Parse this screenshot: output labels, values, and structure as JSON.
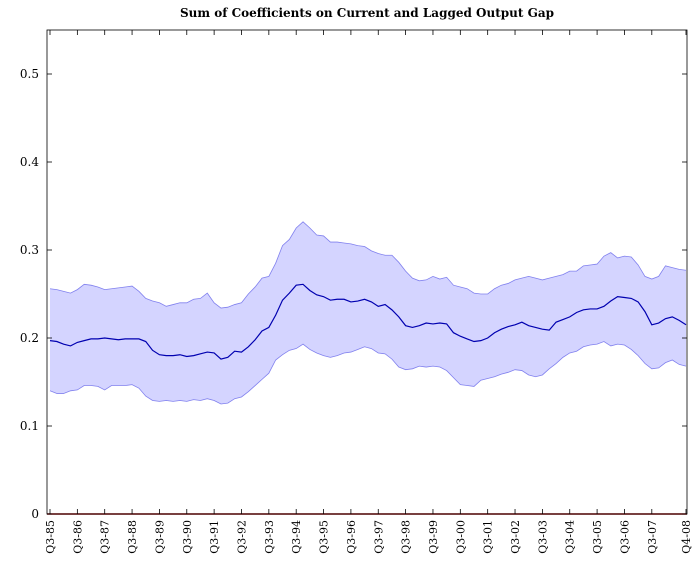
{
  "chart_data": {
    "type": "line",
    "title": "Sum of Coefficients on Current and Lagged Output Gap",
    "categories": [
      "Q3-85",
      null,
      null,
      null,
      "Q3-86",
      null,
      null,
      null,
      "Q3-87",
      null,
      null,
      null,
      "Q3-88",
      null,
      null,
      null,
      "Q3-89",
      null,
      null,
      null,
      "Q3-90",
      null,
      null,
      null,
      "Q3-91",
      null,
      null,
      null,
      "Q3-92",
      null,
      null,
      null,
      "Q3-93",
      null,
      null,
      null,
      "Q3-94",
      null,
      null,
      null,
      "Q3-95",
      null,
      null,
      null,
      "Q3-96",
      null,
      null,
      null,
      "Q3-97",
      null,
      null,
      null,
      "Q3-98",
      null,
      null,
      null,
      "Q3-99",
      null,
      null,
      null,
      "Q3-00",
      null,
      null,
      null,
      "Q3-01",
      null,
      null,
      null,
      "Q3-02",
      null,
      null,
      null,
      "Q3-03",
      null,
      null,
      null,
      "Q3-04",
      null,
      null,
      null,
      "Q3-05",
      null,
      null,
      null,
      "Q3-06",
      null,
      null,
      null,
      "Q3-07",
      null,
      null,
      null,
      null,
      "Q4-08"
    ],
    "values": [
      0.197,
      0.196,
      0.193,
      0.191,
      0.195,
      0.197,
      0.199,
      0.199,
      0.2,
      0.199,
      0.198,
      0.199,
      0.199,
      0.199,
      0.196,
      0.186,
      0.181,
      0.18,
      0.18,
      0.181,
      0.179,
      0.18,
      0.182,
      0.184,
      0.183,
      0.176,
      0.178,
      0.185,
      0.184,
      0.19,
      0.198,
      0.208,
      0.212,
      0.226,
      0.243,
      0.251,
      0.26,
      0.261,
      0.254,
      0.249,
      0.247,
      0.243,
      0.244,
      0.244,
      0.241,
      0.242,
      0.244,
      0.241,
      0.236,
      0.238,
      0.232,
      0.224,
      0.214,
      0.212,
      0.214,
      0.217,
      0.216,
      0.217,
      0.216,
      0.206,
      0.202,
      0.199,
      0.196,
      0.197,
      0.2,
      0.206,
      0.21,
      0.213,
      0.215,
      0.218,
      0.214,
      0.212,
      0.21,
      0.209,
      0.218,
      0.221,
      0.224,
      0.229,
      0.232,
      0.233,
      0.233,
      0.236,
      0.242,
      0.247,
      0.246,
      0.245,
      0.241,
      0.23,
      0.215,
      0.217,
      0.222,
      0.224,
      0.22,
      0.215
    ],
    "color": "#0000b0",
    "band": {
      "color": "#d4d4ff",
      "edge_color": "#8080ee",
      "upper": [
        0.256,
        0.255,
        0.253,
        0.251,
        0.255,
        0.261,
        0.26,
        0.258,
        0.255,
        0.256,
        0.257,
        0.258,
        0.259,
        0.253,
        0.245,
        0.242,
        0.24,
        0.236,
        0.238,
        0.24,
        0.24,
        0.244,
        0.245,
        0.251,
        0.24,
        0.234,
        0.235,
        0.238,
        0.24,
        0.25,
        0.258,
        0.268,
        0.27,
        0.285,
        0.305,
        0.312,
        0.325,
        0.332,
        0.325,
        0.317,
        0.316,
        0.309,
        0.309,
        0.308,
        0.307,
        0.305,
        0.304,
        0.299,
        0.296,
        0.294,
        0.294,
        0.286,
        0.276,
        0.268,
        0.265,
        0.266,
        0.27,
        0.267,
        0.269,
        0.26,
        0.258,
        0.256,
        0.251,
        0.25,
        0.25,
        0.256,
        0.26,
        0.262,
        0.266,
        0.268,
        0.27,
        0.268,
        0.266,
        0.268,
        0.27,
        0.272,
        0.276,
        0.276,
        0.282,
        0.283,
        0.284,
        0.293,
        0.297,
        0.291,
        0.293,
        0.292,
        0.283,
        0.27,
        0.267,
        0.27,
        0.282,
        0.28,
        0.278,
        0.277
      ],
      "lower": [
        0.14,
        0.137,
        0.137,
        0.14,
        0.141,
        0.146,
        0.146,
        0.145,
        0.141,
        0.146,
        0.146,
        0.146,
        0.147,
        0.143,
        0.134,
        0.129,
        0.128,
        0.129,
        0.128,
        0.129,
        0.128,
        0.13,
        0.129,
        0.131,
        0.129,
        0.125,
        0.126,
        0.131,
        0.133,
        0.139,
        0.146,
        0.153,
        0.16,
        0.175,
        0.181,
        0.186,
        0.188,
        0.193,
        0.187,
        0.183,
        0.18,
        0.178,
        0.18,
        0.183,
        0.184,
        0.187,
        0.19,
        0.188,
        0.183,
        0.182,
        0.176,
        0.167,
        0.164,
        0.165,
        0.168,
        0.167,
        0.168,
        0.167,
        0.163,
        0.155,
        0.147,
        0.146,
        0.145,
        0.152,
        0.154,
        0.156,
        0.159,
        0.161,
        0.164,
        0.163,
        0.158,
        0.156,
        0.158,
        0.165,
        0.171,
        0.178,
        0.183,
        0.185,
        0.19,
        0.192,
        0.193,
        0.196,
        0.191,
        0.193,
        0.192,
        0.187,
        0.18,
        0.171,
        0.165,
        0.166,
        0.172,
        0.175,
        0.17,
        0.168
      ]
    },
    "hlines": [
      {
        "value": 0,
        "color": "#a00000"
      }
    ],
    "ylim": [
      0,
      0.55
    ],
    "yticks": [
      0,
      0.1,
      0.2,
      0.3,
      0.4,
      0.5
    ],
    "grid": false
  }
}
